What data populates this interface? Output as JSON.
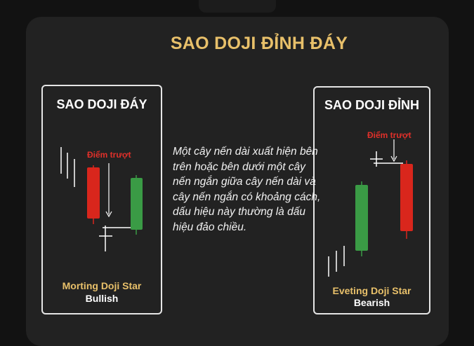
{
  "title": "SAO DOJI ĐỈNH ĐÁY",
  "description": "Một cây nến dài xuất hiện bên trên hoặc bên dưới một cây nến ngắn giữa cây nến dài và cây nến ngắn có khoảng cách, dấu hiệu này thường là dấu hiệu đảo chiều.",
  "left_panel": {
    "heading": "SAO DOJI ĐÁY",
    "gap_label": "Điểm trượt",
    "pattern_name": "Morting Doji Star",
    "pattern_type": "Bullish"
  },
  "right_panel": {
    "heading": "SAO DOJI ĐỈNH",
    "gap_label": "Điểm trượt",
    "pattern_name": "Eveting Doji Star",
    "pattern_type": "Bearish"
  },
  "colors": {
    "accent": "#e8c06a",
    "bearish_candle": "#d9261c",
    "bullish_candle": "#3a9b45",
    "gap_label": "#e0302a"
  }
}
